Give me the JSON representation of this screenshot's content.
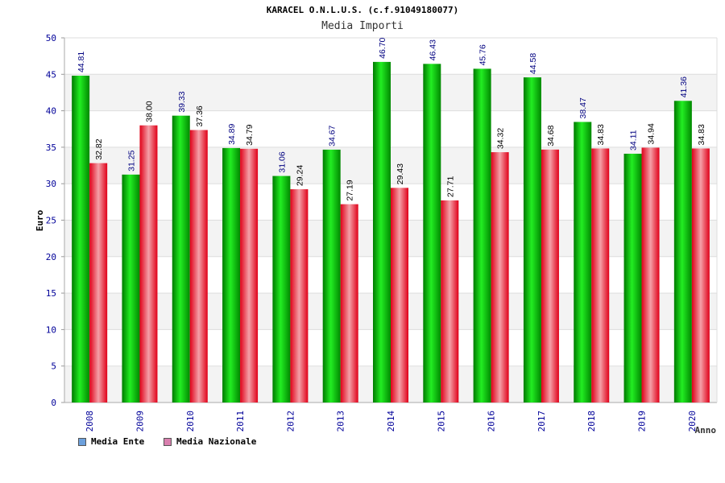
{
  "header": {
    "title": "KARACEL O.N.L.U.S. (c.f.91049180077)",
    "subtitle": "Media Importi"
  },
  "legend": {
    "ente_label": "Media Ente",
    "nazionale_label": "Media Nazionale",
    "ente_swatch": "#6ca0dc",
    "nazionale_swatch": "#d97fae"
  },
  "chart_data": {
    "type": "bar",
    "title": "KARACEL O.N.L.U.S. (c.f.91049180077)",
    "subtitle": "Media Importi",
    "xlabel": "Anno",
    "ylabel": "Euro",
    "ylim": [
      0,
      50
    ],
    "yticks": [
      0,
      5,
      10,
      15,
      20,
      25,
      30,
      35,
      40,
      45,
      50
    ],
    "grid": true,
    "legend_position": "bottom-left",
    "categories": [
      "2008",
      "2009",
      "2010",
      "2011",
      "2012",
      "2013",
      "2014",
      "2015",
      "2016",
      "2017",
      "2018",
      "2019",
      "2020"
    ],
    "series": [
      {
        "name": "Media Ente",
        "color": "#00aa00",
        "values": [
          44.81,
          31.25,
          39.33,
          34.89,
          31.06,
          34.67,
          46.7,
          46.43,
          45.76,
          44.58,
          38.47,
          34.11,
          41.36
        ],
        "labels": [
          "44.81",
          "31.25",
          "39.33",
          "34.89",
          "31.06",
          "34.67",
          "46.70",
          "46.43",
          "45.76",
          "44.58",
          "38.47",
          "34.11",
          "41.36"
        ]
      },
      {
        "name": "Media Nazionale",
        "color": "#e01020",
        "values": [
          32.82,
          38.0,
          37.36,
          34.79,
          29.24,
          27.19,
          29.43,
          27.71,
          34.32,
          34.68,
          34.83,
          34.94,
          34.83
        ],
        "labels": [
          "32.82",
          "38.00",
          "37.36",
          "34.79",
          "29.24",
          "27.19",
          "29.43",
          "27.71",
          "34.32",
          "34.68",
          "34.83",
          "34.94",
          "34.83"
        ]
      }
    ]
  }
}
